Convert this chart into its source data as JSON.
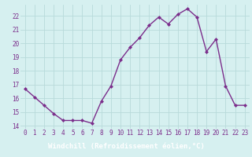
{
  "x": [
    0,
    1,
    2,
    3,
    4,
    5,
    6,
    7,
    8,
    9,
    10,
    11,
    12,
    13,
    14,
    15,
    16,
    17,
    18,
    19,
    20,
    21,
    22,
    23
  ],
  "y": [
    16.7,
    16.1,
    15.5,
    14.9,
    14.4,
    14.4,
    14.4,
    14.2,
    15.8,
    16.9,
    18.8,
    19.7,
    20.4,
    21.3,
    21.9,
    21.4,
    22.1,
    22.5,
    21.9,
    19.4,
    20.3,
    16.9,
    15.5,
    15.5
  ],
  "line_color": "#7b2d8b",
  "marker": "D",
  "marker_size": 2.0,
  "bg_color": "#d6f0f0",
  "grid_color": "#b8dada",
  "xlabel": "Windchill (Refroidissement éolien,°C)",
  "xlabel_color": "#ffffff",
  "xlabel_bg": "#6b2476",
  "yticks": [
    14,
    15,
    16,
    17,
    18,
    19,
    20,
    21,
    22
  ],
  "xticks": [
    0,
    1,
    2,
    3,
    4,
    5,
    6,
    7,
    8,
    9,
    10,
    11,
    12,
    13,
    14,
    15,
    16,
    17,
    18,
    19,
    20,
    21,
    22,
    23
  ],
  "tick_label_color": "#7b2d8b",
  "tick_label_size": 5.5,
  "xlabel_fontsize": 6.5,
  "line_width": 1.0,
  "xlim_left": -0.5,
  "xlim_right": 23.5,
  "ylim_bottom": 13.8,
  "ylim_top": 22.8
}
